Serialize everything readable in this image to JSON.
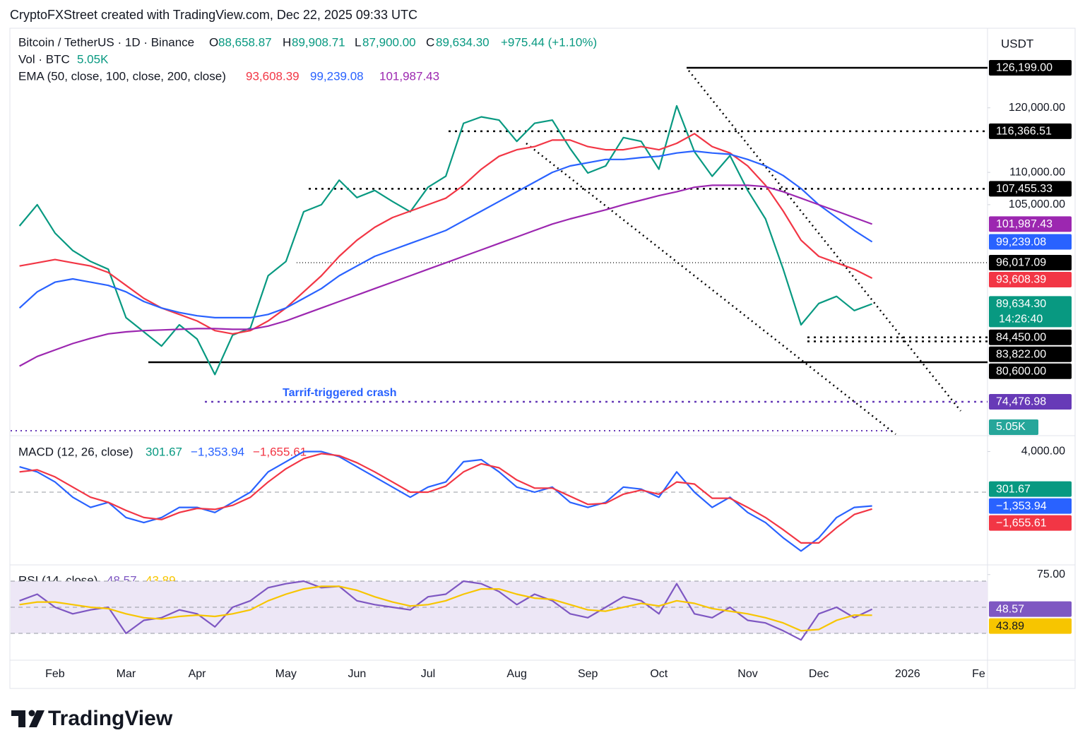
{
  "header": {
    "attribution": "CryptoFXStreet created with TradingView.com, Dec 22, 2025 09:33 UTC",
    "logo": "TradingView"
  },
  "chart_data": [
    {
      "type": "line",
      "title": "Bitcoin / TetherUS · 1D · Binance",
      "ohlc": [
        {
          "key": "O",
          "value": "88,658.87"
        },
        {
          "key": "H",
          "value": "89,908.71"
        },
        {
          "key": "L",
          "value": "87,900.00"
        },
        {
          "key": "C",
          "value": "89,634.30"
        }
      ],
      "change": "+975.44 (+1.10%)",
      "volume": {
        "title": "Vol · BTC",
        "value": "5.05K"
      },
      "indicator": "EMA (50, close, 100, close, 200, close)",
      "currency": "USDT",
      "annotation": "Tarrif-triggered crash",
      "countdown": "14:26:40",
      "categories": [
        null,
        null,
        "Feb",
        null,
        null,
        null,
        "Mar",
        null,
        null,
        null,
        "Apr",
        null,
        null,
        null,
        null,
        "May",
        null,
        null,
        null,
        "Jun",
        null,
        null,
        null,
        "Jul",
        null,
        null,
        null,
        null,
        "Aug",
        null,
        null,
        null,
        "Sep",
        null,
        null,
        null,
        "Oct",
        null,
        null,
        null,
        null,
        "Nov",
        null,
        null,
        null,
        "Dec",
        null,
        null,
        null,
        null,
        "2026",
        null,
        null,
        null,
        "Fe"
      ],
      "series": [
        {
          "color": "#089981",
          "last_label": "89,634.30",
          "values": [
            101700,
            105000,
            100600,
            97900,
            96200,
            95000,
            87500,
            85300,
            83100,
            86400,
            84200,
            78700,
            84800,
            85900,
            94000,
            96200,
            103900,
            105000,
            108800,
            106100,
            107200,
            105500,
            103900,
            107700,
            109400,
            117600,
            118600,
            118100,
            114800,
            117600,
            118100,
            113700,
            109900,
            111000,
            115400,
            114800,
            110500,
            120300,
            113200,
            109400,
            112600,
            107200,
            102800,
            95000,
            86400,
            89700,
            90800,
            88600,
            89634.3,
            null,
            null,
            null,
            null,
            null,
            null
          ]
        },
        {
          "color": "#f23645",
          "last_label": "93,608.39",
          "values": [
            95500,
            96000,
            96500,
            96000,
            95500,
            94500,
            92500,
            90500,
            89000,
            88000,
            87000,
            85500,
            85000,
            85500,
            87000,
            89000,
            91500,
            94000,
            97000,
            99500,
            101500,
            103000,
            104000,
            105000,
            106000,
            108000,
            110500,
            112500,
            113500,
            114000,
            115000,
            115000,
            114000,
            113500,
            113500,
            114000,
            113500,
            114500,
            116000,
            114000,
            113000,
            111000,
            108000,
            104000,
            99500,
            97000,
            96000,
            95000,
            93608.39,
            null,
            null,
            null,
            null,
            null,
            null
          ]
        },
        {
          "color": "#2962ff",
          "last_label": "99,239.08",
          "values": [
            89000,
            91500,
            93000,
            93500,
            93000,
            92500,
            91500,
            90000,
            89000,
            88300,
            87800,
            87500,
            87500,
            87500,
            88000,
            89000,
            90500,
            92000,
            94000,
            95500,
            97000,
            98000,
            99000,
            100000,
            101000,
            102500,
            104000,
            105500,
            107000,
            108500,
            110000,
            111000,
            111500,
            112000,
            112000,
            112300,
            112500,
            113000,
            113300,
            113000,
            112800,
            112000,
            111000,
            109500,
            107500,
            105000,
            103000,
            101000,
            99239.08,
            null,
            null,
            null,
            null,
            null,
            null
          ]
        },
        {
          "color": "#9c27b0",
          "last_label": "101,987.43",
          "values": [
            80000,
            81500,
            82500,
            83500,
            84300,
            85000,
            85300,
            85500,
            85600,
            85700,
            85800,
            85800,
            85700,
            85700,
            86200,
            87000,
            88000,
            89000,
            90000,
            91000,
            92000,
            93000,
            94000,
            95000,
            96000,
            97000,
            98000,
            99000,
            100000,
            101000,
            102000,
            102800,
            103500,
            104200,
            105000,
            105700,
            106400,
            107000,
            107700,
            108000,
            108000,
            108000,
            107800,
            107000,
            106000,
            105000,
            104000,
            103000,
            101987.43,
            null,
            null,
            null,
            null,
            null,
            null
          ]
        }
      ],
      "ylim": [
        69446,
        132322
      ],
      "yticks": [
        {
          "value": 120000,
          "label": "120,000.00"
        },
        {
          "value": 110000,
          "label": "110,000.00"
        },
        {
          "value": 105000,
          "label": "105,000.00"
        }
      ],
      "levels": [
        {
          "value": 126199,
          "label": "126,199.00",
          "color": "#000000",
          "style": "solid"
        },
        {
          "value": 116366.51,
          "label": "116,366.51",
          "color": "#000000",
          "style": "dotted"
        },
        {
          "value": 107455.33,
          "label": "107,455.33",
          "color": "#000000",
          "style": "dotted"
        },
        {
          "value": 96017.09,
          "label": "96,017.09",
          "color": "#000000",
          "style": "fine"
        },
        {
          "value": 84450,
          "label": "84,450.00",
          "color": "#000000",
          "style": "dotted"
        },
        {
          "value": 83822,
          "label": "83,822.00",
          "color": "#000000",
          "style": "dotted"
        },
        {
          "value": 80600,
          "label": "80,600.00",
          "color": "#000000",
          "style": "solid"
        },
        {
          "value": 74476.98,
          "label": "74,476.98",
          "color": "#673ab7",
          "style": "dotted"
        }
      ],
      "grid": false
    },
    {
      "type": "line",
      "title": "MACD (12, 26, close)",
      "histogram": 301.67,
      "histogram_color": "#089981",
      "series": [
        {
          "color": "#2962ff",
          "last_label": "−1,353.94",
          "values": [
            2500,
            2000,
            1000,
            -500,
            -1500,
            -1000,
            -2500,
            -3000,
            -2500,
            -1500,
            -1500,
            -2000,
            -1000,
            0,
            2000,
            3000,
            4000,
            4000,
            3500,
            2500,
            1500,
            500,
            -500,
            500,
            1000,
            3000,
            3200,
            2000,
            500,
            0,
            500,
            -1000,
            -1500,
            -1000,
            500,
            300,
            -500,
            2000,
            0,
            -1500,
            -500,
            -2000,
            -3000,
            -4500,
            -5800,
            -4500,
            -2500,
            -1500,
            -1353.94,
            null,
            null,
            null,
            null,
            null,
            null
          ]
        },
        {
          "color": "#f23645",
          "last_label": "−1,655.61",
          "values": [
            2000,
            2200,
            1500,
            500,
            -500,
            -1000,
            -1800,
            -2500,
            -2700,
            -2000,
            -1600,
            -1700,
            -1300,
            -500,
            1000,
            2300,
            3300,
            3800,
            3600,
            2900,
            2000,
            1000,
            0,
            0,
            600,
            2000,
            2800,
            2400,
            1200,
            400,
            400,
            -400,
            -1200,
            -1100,
            -200,
            200,
            -200,
            1000,
            800,
            -600,
            -600,
            -1500,
            -2500,
            -3700,
            -5000,
            -5000,
            -3500,
            -2200,
            -1655.61,
            null,
            null,
            null,
            null,
            null,
            null
          ]
        }
      ],
      "ylim": [
        -7165,
        5357
      ],
      "yticks": [
        {
          "value": 4000,
          "label": "4,000.00"
        }
      ],
      "levels": [
        {
          "value": 0
        }
      ]
    },
    {
      "type": "line",
      "title": "RSI (14, close)",
      "band_fill": "#ede7f6",
      "series": [
        {
          "color": "#7e57c2",
          "values": [
            55,
            60,
            50,
            45,
            48,
            50,
            30,
            40,
            42,
            48,
            45,
            35,
            50,
            55,
            65,
            68,
            70,
            65,
            66,
            55,
            52,
            50,
            48,
            58,
            60,
            70,
            68,
            62,
            52,
            60,
            55,
            45,
            42,
            50,
            58,
            55,
            45,
            68,
            45,
            42,
            50,
            40,
            38,
            32,
            25,
            45,
            50,
            42,
            48.57,
            null,
            null,
            null,
            null,
            null,
            null
          ]
        },
        {
          "color": "#f7c500",
          "box_text": "#131722",
          "values": [
            52,
            54,
            54,
            52,
            50,
            49,
            45,
            42,
            41,
            43,
            44,
            43,
            45,
            48,
            55,
            60,
            64,
            66,
            66,
            63,
            58,
            54,
            51,
            52,
            55,
            60,
            64,
            64,
            60,
            57,
            56,
            52,
            48,
            47,
            50,
            53,
            51,
            55,
            53,
            49,
            47,
            45,
            42,
            38,
            32,
            33,
            40,
            44,
            43.89,
            null,
            null,
            null,
            null,
            null,
            null
          ]
        }
      ],
      "ylim": [
        9.5,
        80.8
      ],
      "yticks": [
        {
          "value": 75,
          "label": "75.00"
        }
      ],
      "levels": [
        {
          "value": 70
        },
        {
          "value": 50
        },
        {
          "value": 30
        }
      ]
    }
  ]
}
